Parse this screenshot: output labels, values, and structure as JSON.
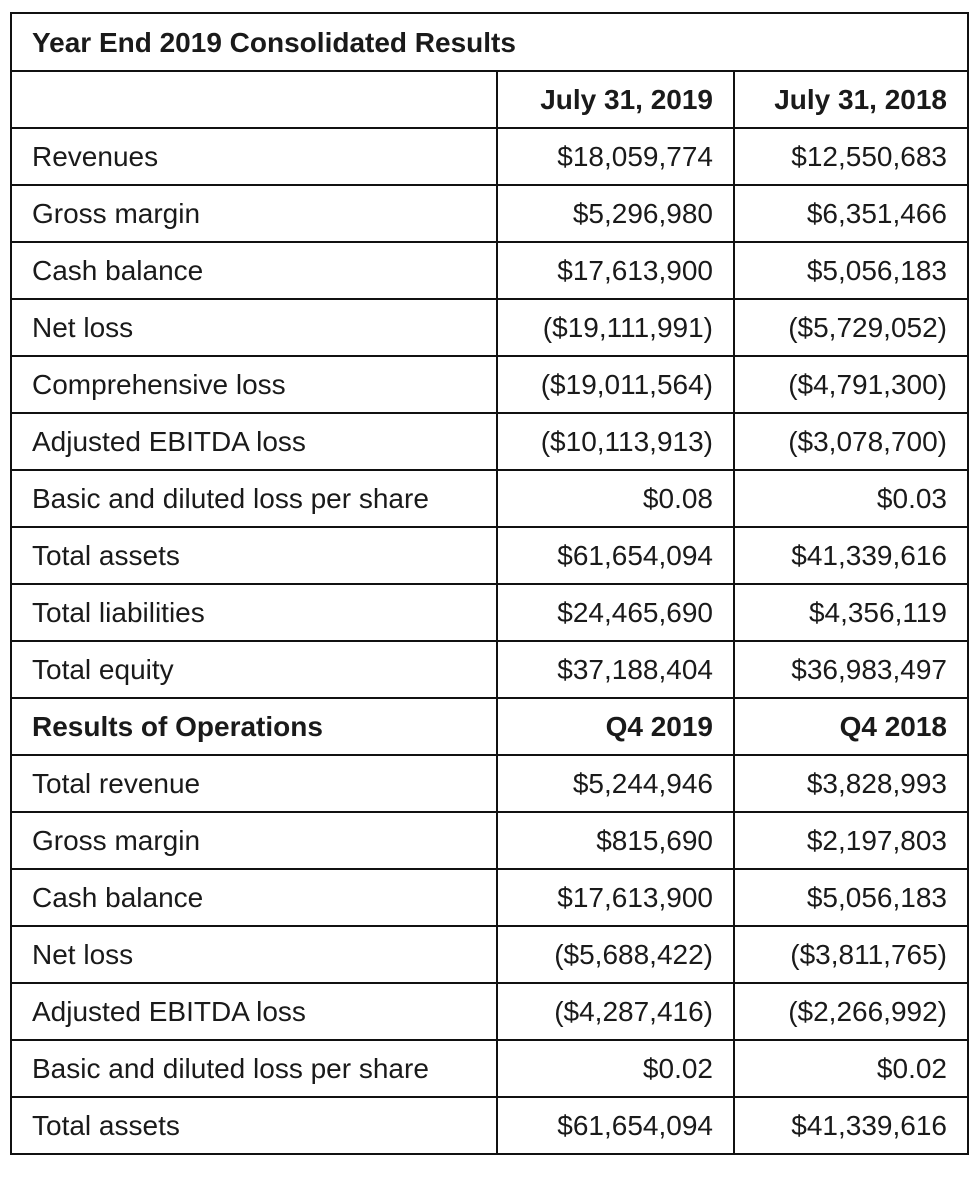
{
  "title": "Year End 2019 Consolidated Results",
  "annual_header": {
    "label": "",
    "col_a": "July 31, 2019",
    "col_b": "July 31, 2018"
  },
  "annual_rows": [
    {
      "label": "Revenues",
      "a": "$18,059,774",
      "b": "$12,550,683"
    },
    {
      "label": "Gross margin",
      "a": "$5,296,980",
      "b": "$6,351,466"
    },
    {
      "label": "Cash balance",
      "a": "$17,613,900",
      "b": "$5,056,183"
    },
    {
      "label": "Net loss",
      "a": "($19,111,991)",
      "b": "($5,729,052)"
    },
    {
      "label": "Comprehensive loss",
      "a": "($19,011,564)",
      "b": "($4,791,300)"
    },
    {
      "label": "Adjusted EBITDA loss",
      "a": "($10,113,913)",
      "b": "($3,078,700)"
    },
    {
      "label": "Basic and diluted loss per share",
      "a": "$0.08",
      "b": "$0.03"
    },
    {
      "label": "Total assets",
      "a": "$61,654,094",
      "b": "$41,339,616"
    },
    {
      "label": "Total liabilities",
      "a": "$24,465,690",
      "b": "$4,356,119"
    },
    {
      "label": "Total equity",
      "a": "$37,188,404",
      "b": "$36,983,497"
    }
  ],
  "operations_header": {
    "label": "Results of Operations",
    "col_a": "Q4 2019",
    "col_b": "Q4 2018"
  },
  "operations_rows": [
    {
      "label": "Total revenue",
      "a": "$5,244,946",
      "b": "$3,828,993"
    },
    {
      "label": "Gross margin",
      "a": "$815,690",
      "b": "$2,197,803"
    },
    {
      "label": "Cash balance",
      "a": "$17,613,900",
      "b": "$5,056,183"
    },
    {
      "label": "Net loss",
      "a": "($5,688,422)",
      "b": "($3,811,765)"
    },
    {
      "label": "Adjusted EBITDA loss",
      "a": "($4,287,416)",
      "b": "($2,266,992)"
    },
    {
      "label": "Basic and diluted loss per share",
      "a": "$0.02",
      "b": "$0.02"
    },
    {
      "label": "Total assets",
      "a": "$61,654,094",
      "b": "$41,339,616"
    }
  ]
}
